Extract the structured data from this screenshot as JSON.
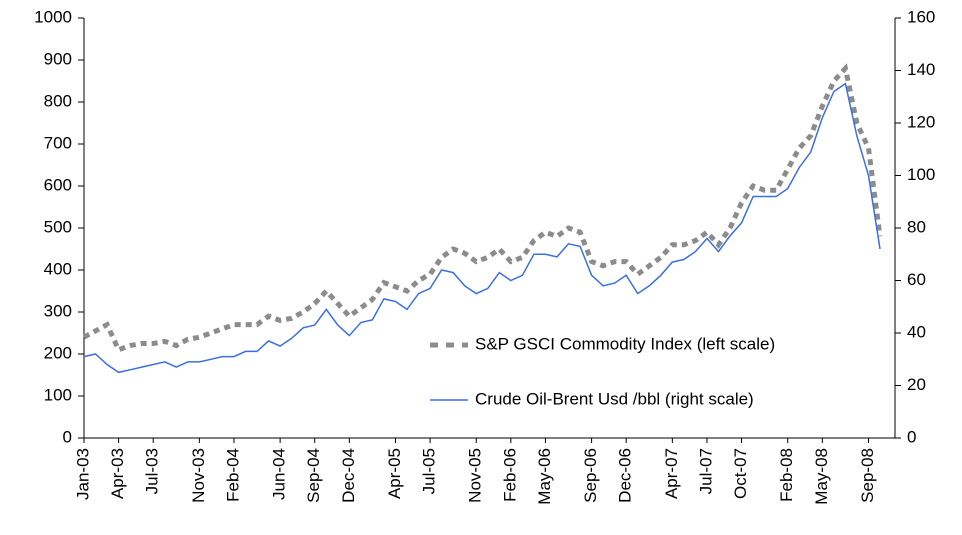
{
  "chart_data": {
    "type": "line",
    "categories": [
      "Jan-03",
      null,
      null,
      "Apr-03",
      null,
      null,
      "Jul-03",
      null,
      null,
      null,
      "Nov-03",
      null,
      null,
      "Feb-04",
      null,
      null,
      null,
      "Jun-04",
      null,
      null,
      "Sep-04",
      null,
      null,
      "Dec-04",
      null,
      null,
      null,
      "Apr-05",
      null,
      null,
      "Jul-05",
      null,
      null,
      null,
      "Nov-05",
      null,
      null,
      "Feb-06",
      null,
      null,
      "May-06",
      null,
      null,
      null,
      "Sep-06",
      null,
      null,
      "Dec-06",
      null,
      null,
      null,
      "Apr-07",
      null,
      null,
      "Jul-07",
      null,
      null,
      "Oct-07",
      null,
      null,
      null,
      "Feb-08",
      null,
      null,
      "May-08",
      null,
      null,
      null,
      "Sep-08",
      null
    ],
    "series": [
      {
        "name": "S&P GSCI Commodity Index (left scale)",
        "color": "#8c8c8c",
        "style": "dashed",
        "axis": "y",
        "values": [
          240,
          255,
          270,
          210,
          220,
          225,
          225,
          230,
          220,
          235,
          240,
          250,
          260,
          270,
          270,
          270,
          290,
          280,
          285,
          300,
          320,
          350,
          320,
          290,
          310,
          330,
          370,
          360,
          350,
          375,
          390,
          430,
          450,
          440,
          420,
          430,
          450,
          420,
          430,
          470,
          490,
          480,
          500,
          490,
          420,
          410,
          420,
          420,
          390,
          410,
          430,
          460,
          460,
          470,
          490,
          460,
          500,
          560,
          600,
          590,
          590,
          640,
          690,
          720,
          790,
          850,
          880,
          750,
          690,
          480
        ]
      },
      {
        "name": "Crude Oil-Brent Usd /bbl (right scale)",
        "color": "#3a6fe8",
        "style": "solid",
        "axis": "y2",
        "values": [
          31,
          32,
          28,
          25,
          26,
          27,
          28,
          29,
          27,
          29,
          29,
          30,
          31,
          31,
          33,
          33,
          37,
          35,
          38,
          42,
          43,
          49,
          43,
          39,
          44,
          45,
          53,
          52,
          49,
          55,
          57,
          64,
          63,
          58,
          55,
          57,
          63,
          60,
          62,
          70,
          70,
          69,
          74,
          73,
          62,
          58,
          59,
          62,
          55,
          58,
          62,
          67,
          68,
          71,
          76,
          71,
          77,
          82,
          92,
          92,
          92,
          95,
          103,
          109,
          122,
          132,
          135,
          115,
          100,
          72
        ]
      }
    ],
    "ylim": [
      0,
      1000
    ],
    "yticks": [
      0,
      100,
      200,
      300,
      400,
      500,
      600,
      700,
      800,
      900,
      1000
    ],
    "y2lim": [
      0,
      160
    ],
    "y2ticks": [
      0,
      20,
      40,
      60,
      80,
      100,
      120,
      140,
      160
    ]
  }
}
